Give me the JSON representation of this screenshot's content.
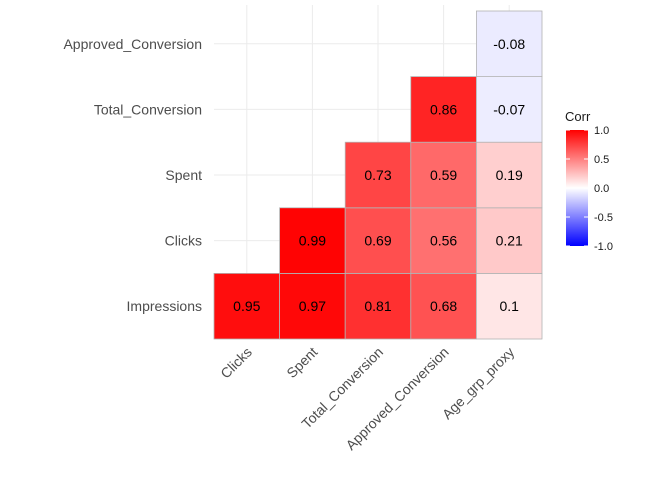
{
  "chart_data": {
    "type": "heatmap",
    "title": "",
    "xlabel": "",
    "ylabel": "",
    "x_categories": [
      "Clicks",
      "Spent",
      "Total_Conversion",
      "Approved_Conversion",
      "Age_grp_proxy"
    ],
    "y_categories": [
      "Impressions",
      "Clicks",
      "Spent",
      "Total_Conversion",
      "Approved_Conversion"
    ],
    "cells": [
      {
        "x": "Clicks",
        "y": "Impressions",
        "value": 0.95
      },
      {
        "x": "Spent",
        "y": "Impressions",
        "value": 0.97
      },
      {
        "x": "Total_Conversion",
        "y": "Impressions",
        "value": 0.81
      },
      {
        "x": "Approved_Conversion",
        "y": "Impressions",
        "value": 0.68
      },
      {
        "x": "Age_grp_proxy",
        "y": "Impressions",
        "value": 0.1
      },
      {
        "x": "Spent",
        "y": "Clicks",
        "value": 0.99
      },
      {
        "x": "Total_Conversion",
        "y": "Clicks",
        "value": 0.69
      },
      {
        "x": "Approved_Conversion",
        "y": "Clicks",
        "value": 0.56
      },
      {
        "x": "Age_grp_proxy",
        "y": "Clicks",
        "value": 0.21
      },
      {
        "x": "Total_Conversion",
        "y": "Spent",
        "value": 0.73
      },
      {
        "x": "Approved_Conversion",
        "y": "Spent",
        "value": 0.59
      },
      {
        "x": "Age_grp_proxy",
        "y": "Spent",
        "value": 0.19
      },
      {
        "x": "Approved_Conversion",
        "y": "Total_Conversion",
        "value": 0.86
      },
      {
        "x": "Age_grp_proxy",
        "y": "Total_Conversion",
        "value": -0.07
      },
      {
        "x": "Age_grp_proxy",
        "y": "Approved_Conversion",
        "value": -0.08
      }
    ],
    "legend": {
      "title": "Corr",
      "position": "right",
      "range": [
        -1.0,
        1.0
      ],
      "ticks": [
        "1.0",
        "0.5",
        "0.0",
        "-0.5",
        "-1.0"
      ],
      "colors": {
        "low": "#0000ff",
        "mid": "#ffffff",
        "high": "#ff0000"
      }
    },
    "grid": true
  }
}
